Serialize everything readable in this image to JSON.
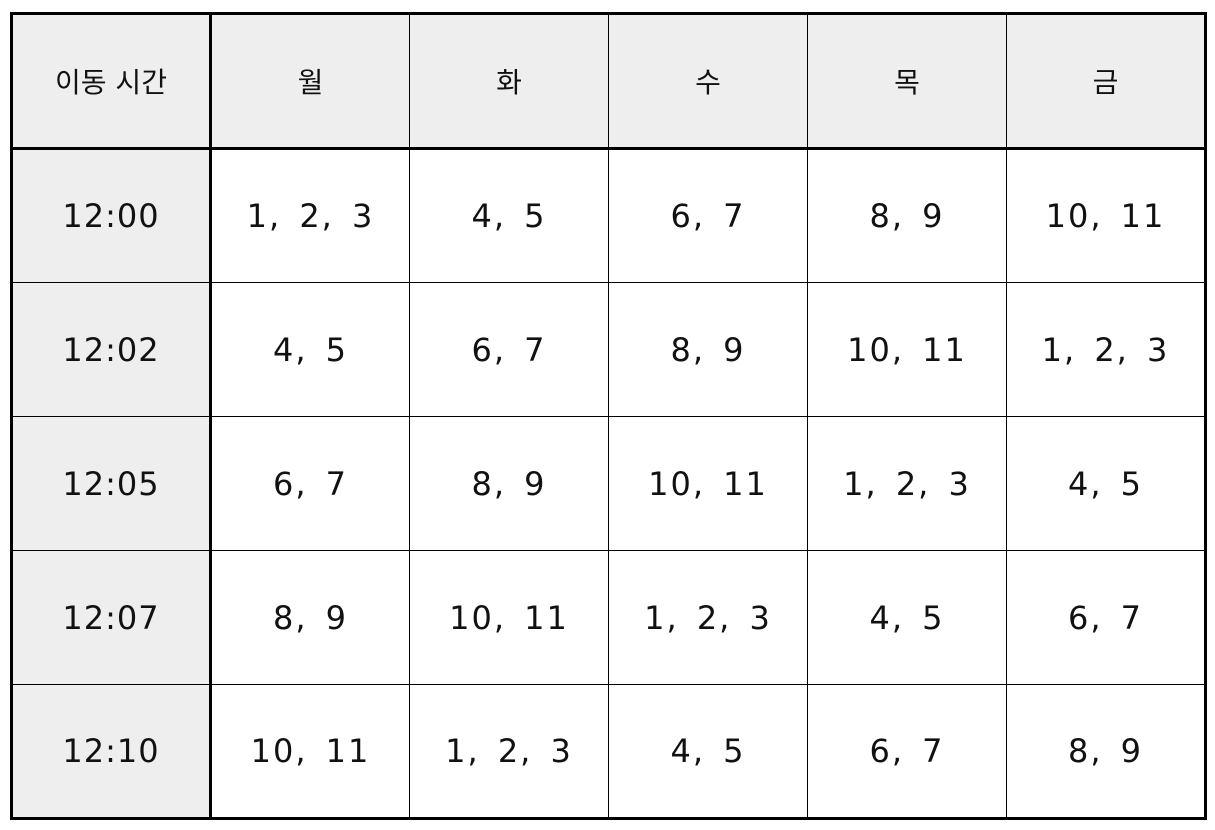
{
  "table": {
    "header": {
      "time_label": "이동 시간",
      "days": [
        "월",
        "화",
        "수",
        "목",
        "금"
      ]
    },
    "rows": [
      {
        "time": "12:00",
        "cells": [
          "1, 2, 3",
          "4, 5",
          "6, 7",
          "8, 9",
          "10, 11"
        ]
      },
      {
        "time": "12:02",
        "cells": [
          "4, 5",
          "6, 7",
          "8, 9",
          "10, 11",
          "1, 2, 3"
        ]
      },
      {
        "time": "12:05",
        "cells": [
          "6, 7",
          "8, 9",
          "10, 11",
          "1, 2, 3",
          "4, 5"
        ]
      },
      {
        "time": "12:07",
        "cells": [
          "8, 9",
          "10, 11",
          "1, 2, 3",
          "4, 5",
          "6, 7"
        ]
      },
      {
        "time": "12:10",
        "cells": [
          "10, 11",
          "1, 2, 3",
          "4, 5",
          "6, 7",
          "8, 9"
        ]
      }
    ]
  },
  "colors": {
    "header_bg": "#eeeeee",
    "cell_bg": "#ffffff",
    "border": "#000000"
  }
}
